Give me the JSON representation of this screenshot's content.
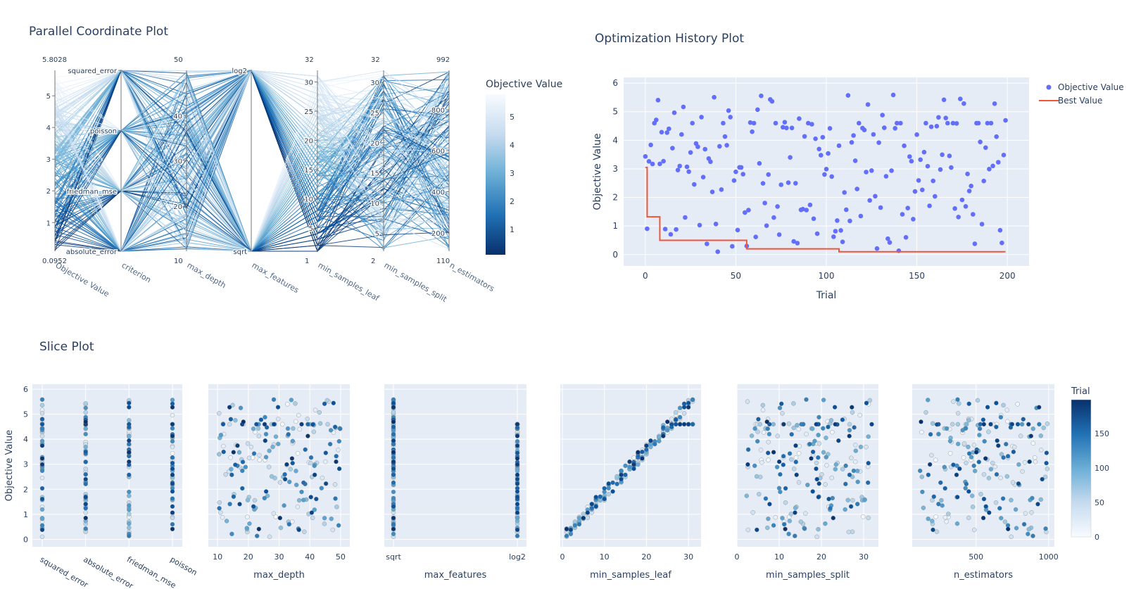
{
  "titles": {
    "parallel": "Parallel Coordinate Plot",
    "history": "Optimization History Plot",
    "slice": "Slice Plot"
  },
  "colors": {
    "plot_bg": "#e5ecf6",
    "grid": "#ffffff",
    "text": "#2a3f5f",
    "marker": "#636efa",
    "best_line": "#ef553b",
    "blues": [
      "#08306b",
      "#08519c",
      "#2171b5",
      "#4292c6",
      "#6baed6",
      "#9ecae1",
      "#c6dbef",
      "#deebf7",
      "#f7fbff"
    ]
  },
  "chart_data": [
    {
      "id": "parallel",
      "type": "parallel_coordinates",
      "title": "Parallel Coordinate Plot",
      "colorbar": {
        "title": "Objective Value",
        "ticks": [
          "1",
          "2",
          "3",
          "4",
          "5"
        ],
        "range": [
          0.0952,
          5.8028
        ]
      },
      "axes": [
        {
          "label": "Objective Value",
          "min_label": "0.0952",
          "max_label": "5.8028",
          "range": [
            0.0952,
            5.8028
          ],
          "ticks": [
            1,
            2,
            3,
            4,
            5
          ],
          "tick_labels": [
            "1",
            "2",
            "3",
            "4",
            "5"
          ]
        },
        {
          "label": "criterion",
          "categorical": true,
          "categories": [
            "absolute_error",
            "friedman_mse",
            "poisson",
            "squared_error"
          ]
        },
        {
          "label": "max_depth",
          "min_label": "10",
          "max_label": "50",
          "range": [
            10,
            50
          ],
          "ticks": [
            20,
            30,
            40
          ],
          "tick_labels": [
            "20",
            "30",
            "40"
          ]
        },
        {
          "label": "max_features",
          "categorical": true,
          "categories": [
            "sqrt",
            "log2"
          ]
        },
        {
          "label": "min_samples_leaf",
          "min_label": "1",
          "max_label": "32",
          "range": [
            1,
            32
          ],
          "ticks": [
            5,
            10,
            15,
            20,
            25,
            30
          ],
          "tick_labels": [
            "5",
            "10",
            "15",
            "20",
            "25",
            "30"
          ]
        },
        {
          "label": "min_samples_split",
          "min_label": "2",
          "max_label": "32",
          "range": [
            2,
            32
          ],
          "ticks": [
            5,
            10,
            15,
            20,
            25,
            30
          ],
          "tick_labels": [
            "5",
            "10",
            "15",
            "20",
            "25",
            "30"
          ]
        },
        {
          "label": "n_estimators",
          "min_label": "110",
          "max_label": "992",
          "range": [
            110,
            992
          ],
          "ticks": [
            200,
            400,
            600,
            800
          ],
          "tick_labels": [
            "200",
            "400",
            "600",
            "800"
          ]
        }
      ]
    },
    {
      "id": "history",
      "type": "scatter+line",
      "title": "Optimization History Plot",
      "xlabel": "Trial",
      "ylabel": "Objective Value",
      "xlim": [
        -12,
        212
      ],
      "ylim": [
        -0.4,
        6.2
      ],
      "x_ticks": [
        0,
        50,
        100,
        150,
        200
      ],
      "y_ticks": [
        0,
        1,
        2,
        3,
        4,
        5,
        6
      ],
      "legend": [
        "Objective Value",
        "Best Value"
      ],
      "best_value_steps": [
        [
          0,
          3.05
        ],
        [
          1,
          1.32
        ],
        [
          7,
          1.32
        ],
        [
          8,
          0.5
        ],
        [
          55,
          0.5
        ],
        [
          56,
          0.2
        ],
        [
          106,
          0.2
        ],
        [
          107,
          0.1
        ],
        [
          199,
          0.1
        ]
      ]
    },
    {
      "id": "slice",
      "type": "scatter",
      "title": "Slice Plot",
      "ylabel": "Objective Value",
      "ylim": [
        -0.3,
        6.2
      ],
      "y_ticks": [
        0,
        1,
        2,
        3,
        4,
        5,
        6
      ],
      "colorbar": {
        "title": "Trial",
        "ticks": [
          "0",
          "50",
          "100",
          "150"
        ],
        "range": [
          0,
          199
        ]
      },
      "panels": [
        {
          "param": "criterion",
          "xlabel": "",
          "categorical": true,
          "categories": [
            "squared_error",
            "absolute_error",
            "friedman_mse",
            "poisson"
          ]
        },
        {
          "param": "max_depth",
          "xlabel": "max_depth",
          "xlim": [
            7,
            53
          ],
          "x_ticks": [
            10,
            20,
            30,
            40,
            50
          ],
          "x_tick_labels": [
            "10",
            "20",
            "30",
            "40",
            "50"
          ]
        },
        {
          "param": "max_features",
          "xlabel": "max_features",
          "categorical": true,
          "categories": [
            "sqrt",
            "log2"
          ]
        },
        {
          "param": "min_samples_leaf",
          "xlabel": "min_samples_leaf",
          "xlim": [
            -0.5,
            33
          ],
          "x_ticks": [
            0,
            10,
            20,
            30
          ],
          "x_tick_labels": [
            "0",
            "10",
            "20",
            "30"
          ]
        },
        {
          "param": "min_samples_split",
          "xlabel": "min_samples_split",
          "xlim": [
            0,
            33.5
          ],
          "x_ticks": [
            0,
            10,
            20,
            30
          ],
          "x_tick_labels": [
            "0",
            "10",
            "20",
            "30"
          ]
        },
        {
          "param": "n_estimators",
          "xlabel": "n_estimators",
          "xlim": [
            60,
            1040
          ],
          "x_ticks": [
            500,
            1000
          ],
          "x_tick_labels": [
            "500",
            "1000"
          ]
        }
      ]
    }
  ]
}
